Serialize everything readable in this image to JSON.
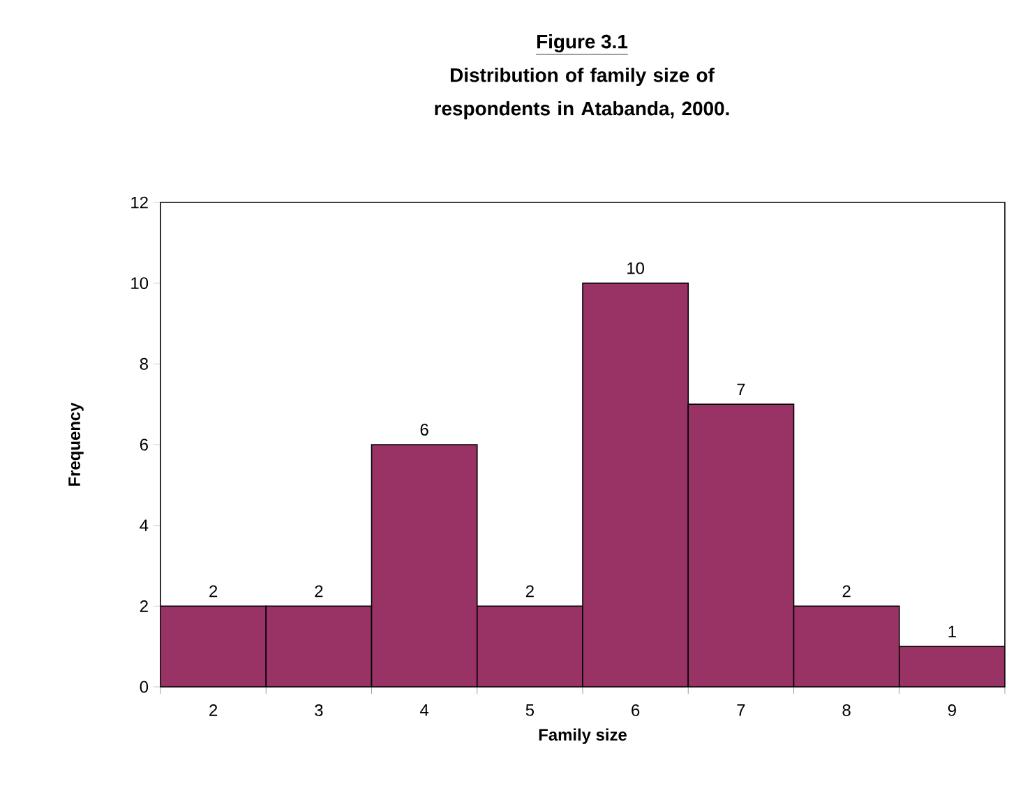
{
  "chart_data": {
    "type": "bar",
    "title": "Figure 3.1",
    "subtitle": "Distribution of family size of respondents in Atabanda, 2000.",
    "xlabel": "Family size",
    "ylabel": "Frequency",
    "categories": [
      "2",
      "3",
      "4",
      "5",
      "6",
      "7",
      "8",
      "9"
    ],
    "values": [
      2,
      2,
      6,
      2,
      10,
      7,
      2,
      1
    ],
    "color": "#993366",
    "ylim": [
      0,
      12
    ],
    "yticks": [
      0,
      2,
      4,
      6,
      8,
      10,
      12
    ],
    "data_labels": true
  }
}
